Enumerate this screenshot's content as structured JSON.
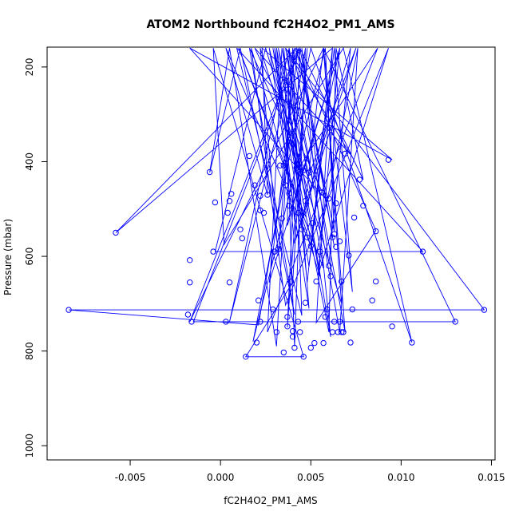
{
  "chart_data": {
    "type": "line",
    "title": "ATOM2 Northbound fC2H4O2_PM1_AMS",
    "xlabel": "fC2H4O2_PM1_AMS",
    "ylabel": "Pressure (mbar)",
    "xlim": [
      -0.0096,
      0.0152
    ],
    "ylim": [
      1030,
      158
    ],
    "y_reversed": true,
    "grid": false,
    "x_ticks": [
      -0.005,
      0.0,
      0.005,
      0.01,
      0.015
    ],
    "x_tick_labels": [
      "-0.005",
      "0.000",
      "0.005",
      "0.010",
      "0.015"
    ],
    "y_ticks": [
      200,
      400,
      600,
      800,
      1000
    ],
    "y_tick_labels": [
      "200",
      "400",
      "600",
      "800",
      "1000"
    ],
    "color": "#0000ff",
    "series": [
      {
        "x": [
          0.004,
          0.0031,
          0.0005,
          -0.0006,
          0.0011,
          0.0041,
          0.0016,
          0.0052,
          0.0036,
          0.0072,
          0.0019,
          0.0058,
          -0.0017,
          0.0095,
          0.0023,
          0.0026,
          0.0003,
          0.005,
          0.0062,
          0.0048,
          0.0035,
          0.0041,
          0.0047,
          0.0021,
          -0.0084,
          0.0146,
          0.0036,
          0.0057,
          0.001,
          0.0047,
          0.0066,
          0.0037,
          0.0038,
          0.0049,
          0.0027,
          0.0043,
          0.0087,
          0.0026,
          0.0034,
          0.0061,
          0.0045,
          0.006,
          0.0072,
          0.0042,
          0.0031,
          0.0053,
          0.0076,
          0.0066,
          0.0038,
          0.0005,
          0.0043,
          -0.0017,
          0.0057,
          0.0067,
          0.0025,
          -0.0003,
          0.0112,
          0.0009,
          0.0045,
          0.004,
          0.0069,
          0.0057,
          0.0046,
          0.003,
          0.0041,
          0.0075,
          0.0049,
          0.0032,
          0.0055,
          0.0017,
          0.0036,
          0.0093,
          0.0054,
          0.0066,
          0.0027,
          0.0043,
          0.0063,
          0.0044,
          -0.0015,
          0.013,
          0.0057,
          0.0073,
          0.0063,
          0.0049,
          0.0029,
          0.006,
          0.0064,
          0.0079,
          0.0044,
          0.0037,
          0.0048,
          0.004,
          0.0014,
          0.0046,
          -0.0004,
          0.0002,
          0.0068,
          0.0106,
          0.005,
          0.0018,
          0.0058,
          0.0063,
          0.0042,
          -0.0058,
          0.0062,
          0.0053,
          0.0086,
          0.0041,
          0.0032,
          0.0022,
          0.0049
        ],
        "y": [
          160,
          790,
          160,
          423,
          160,
          723,
          160,
          460,
          160,
          385,
          160,
          478,
          160,
          396,
          160,
          470,
          160,
          578,
          160,
          655,
          160,
          790,
          160,
          745,
          713,
          713,
          160,
          625,
          160,
          515,
          160,
          535,
          160,
          710,
          160,
          415,
          160,
          760,
          160,
          770,
          160,
          615,
          160,
          560,
          160,
          597,
          160,
          760,
          160,
          738,
          160,
          738,
          160,
          700,
          160,
          590,
          590,
          160,
          725,
          160,
          760,
          160,
          520,
          160,
          573,
          160,
          428,
          160,
          642,
          160,
          703,
          160,
          640,
          160,
          655,
          160,
          580,
          160,
          738,
          738,
          160,
          675,
          160,
          622,
          160,
          760,
          160,
          438,
          160,
          750,
          160,
          655,
          812,
          812,
          160,
          575,
          160,
          782,
          160,
          780,
          160,
          548,
          160,
          550,
          160,
          740,
          545,
          160,
          598,
          160,
          490
        ],
        "markers": [
          [
            -0.0084,
            713
          ],
          [
            0.0146,
            713
          ],
          [
            -0.0058,
            550
          ],
          [
            0.013,
            738
          ],
          [
            0.0112,
            590
          ],
          [
            0.0106,
            782
          ],
          [
            0.0095,
            748
          ],
          [
            0.0093,
            396
          ],
          [
            -0.0017,
            608
          ],
          [
            -0.0017,
            655
          ],
          [
            -0.0016,
            738
          ],
          [
            -0.0018,
            723
          ],
          [
            -0.0006,
            422
          ],
          [
            -0.0004,
            590
          ],
          [
            -0.0003,
            486
          ],
          [
            0.0003,
            738
          ],
          [
            0.0004,
            508
          ],
          [
            0.0005,
            483
          ],
          [
            0.0006,
            468
          ],
          [
            0.0005,
            655
          ],
          [
            0.0011,
            543
          ],
          [
            0.0012,
            562
          ],
          [
            0.0014,
            812
          ],
          [
            0.0016,
            388
          ],
          [
            0.0019,
            450
          ],
          [
            0.002,
            782
          ],
          [
            0.0021,
            693
          ],
          [
            0.0022,
            472
          ],
          [
            0.0022,
            503
          ],
          [
            0.0022,
            738
          ],
          [
            0.0024,
            508
          ],
          [
            0.0026,
            470
          ],
          [
            0.0029,
            712
          ],
          [
            0.003,
            590
          ],
          [
            0.0031,
            760
          ],
          [
            0.0032,
            585
          ],
          [
            0.0034,
            520
          ],
          [
            0.0035,
            803
          ],
          [
            0.0035,
            408
          ],
          [
            0.0036,
            403
          ],
          [
            0.0036,
            450
          ],
          [
            0.0037,
            728
          ],
          [
            0.0037,
            748
          ],
          [
            0.0038,
            467
          ],
          [
            0.0038,
            493
          ],
          [
            0.0039,
            653
          ],
          [
            0.004,
            770
          ],
          [
            0.0041,
            793
          ],
          [
            0.0042,
            413
          ],
          [
            0.0043,
            508
          ],
          [
            0.0043,
            738
          ],
          [
            0.0044,
            760
          ],
          [
            0.0045,
            543
          ],
          [
            0.0046,
            812
          ],
          [
            0.0046,
            418
          ],
          [
            0.0047,
            698
          ],
          [
            0.0048,
            560
          ],
          [
            0.0049,
            423
          ],
          [
            0.005,
            578
          ],
          [
            0.005,
            793
          ],
          [
            0.0051,
            530
          ],
          [
            0.0052,
            783
          ],
          [
            0.0053,
            653
          ],
          [
            0.0055,
            590
          ],
          [
            0.0057,
            783
          ],
          [
            0.0058,
            728
          ],
          [
            0.0059,
            712
          ],
          [
            0.006,
            478
          ],
          [
            0.006,
            620
          ],
          [
            0.0061,
            642
          ],
          [
            0.0062,
            560
          ],
          [
            0.0062,
            760
          ],
          [
            0.0063,
            738
          ],
          [
            0.0063,
            553
          ],
          [
            0.0064,
            488
          ],
          [
            0.0064,
            580
          ],
          [
            0.0065,
            760
          ],
          [
            0.0066,
            568
          ],
          [
            0.0066,
            738
          ],
          [
            0.0067,
            653
          ],
          [
            0.0067,
            760
          ],
          [
            0.0068,
            760
          ],
          [
            0.0069,
            383
          ],
          [
            0.0071,
            598
          ],
          [
            0.0072,
            782
          ],
          [
            0.0073,
            712
          ],
          [
            0.0074,
            518
          ],
          [
            0.0077,
            438
          ],
          [
            0.0079,
            493
          ],
          [
            0.0084,
            693
          ],
          [
            0.0086,
            547
          ],
          [
            0.0086,
            653
          ],
          [
            0.0056,
            465
          ],
          [
            0.0047,
            483
          ],
          [
            0.004,
            758
          ],
          [
            0.0033,
            408
          ]
        ]
      }
    ]
  }
}
